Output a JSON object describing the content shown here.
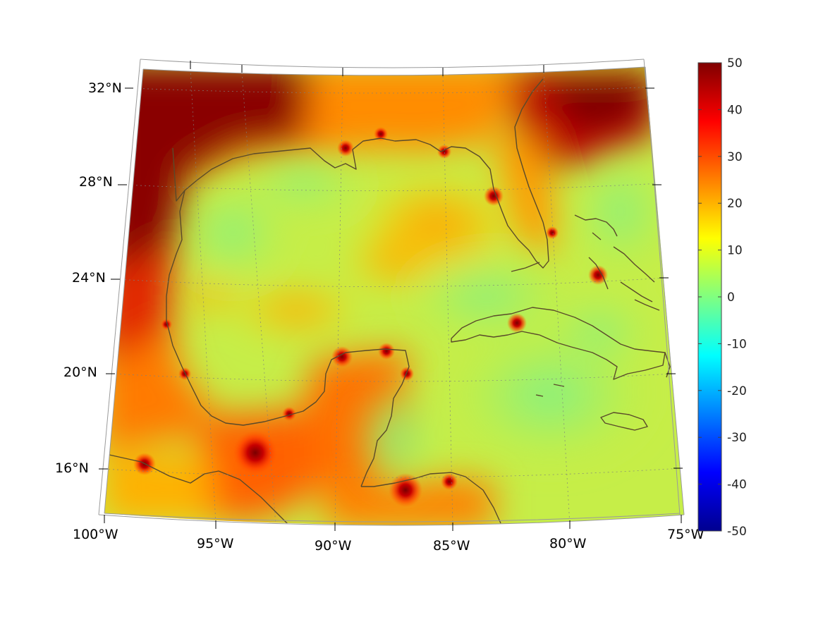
{
  "figure": {
    "type": "map",
    "projection": "conic",
    "region": "Gulf of Mexico and western Caribbean",
    "lon_range": [
      -100,
      -75
    ],
    "lat_range": [
      14,
      33
    ],
    "graticule": "dotted",
    "coastline_color": "#5a4a2a"
  },
  "lat_labels": [
    {
      "lat": 32,
      "text": "32°N"
    },
    {
      "lat": 28,
      "text": "28°N"
    },
    {
      "lat": 24,
      "text": "24°N"
    },
    {
      "lat": 20,
      "text": "20°N"
    },
    {
      "lat": 16,
      "text": "16°N"
    }
  ],
  "lon_labels": [
    {
      "lon": -100,
      "text": "100°W"
    },
    {
      "lon": -95,
      "text": "95°W"
    },
    {
      "lon": -90,
      "text": "90°W"
    },
    {
      "lon": -85,
      "text": "85°W"
    },
    {
      "lon": -80,
      "text": "80°W"
    },
    {
      "lon": -75,
      "text": "75°W"
    }
  ],
  "colorbar": {
    "colormap": "jet",
    "min": -50,
    "max": 50,
    "ticks": [
      "50",
      "40",
      "30",
      "20",
      "10",
      "0",
      "-10",
      "-20",
      "-30",
      "-40",
      "-50"
    ]
  }
}
